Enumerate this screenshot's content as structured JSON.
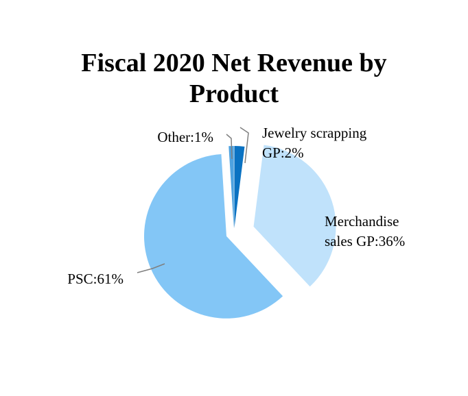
{
  "chart_data": {
    "type": "pie",
    "title_lines": [
      "Fiscal 2020 Net Revenue by",
      "Product"
    ],
    "exploded": true,
    "slices": [
      {
        "name": "Jewelry scrapping GP",
        "value": 2,
        "label_lines": [
          "Jewelry scrapping",
          "GP:2%"
        ],
        "color": "#0a72c2"
      },
      {
        "name": "Merchandise sales GP",
        "value": 36,
        "label_lines": [
          "Merchandise",
          "sales GP:36%"
        ],
        "color": "#c0e2fb"
      },
      {
        "name": "PSC",
        "value": 61,
        "label_lines": [
          "PSC:61%"
        ],
        "color": "#83c6f6"
      },
      {
        "name": "Other",
        "value": 1,
        "label_lines": [
          "Other:1%"
        ],
        "color": "#4ea2e0"
      }
    ],
    "leader_line_color": "#7f7f7f"
  }
}
